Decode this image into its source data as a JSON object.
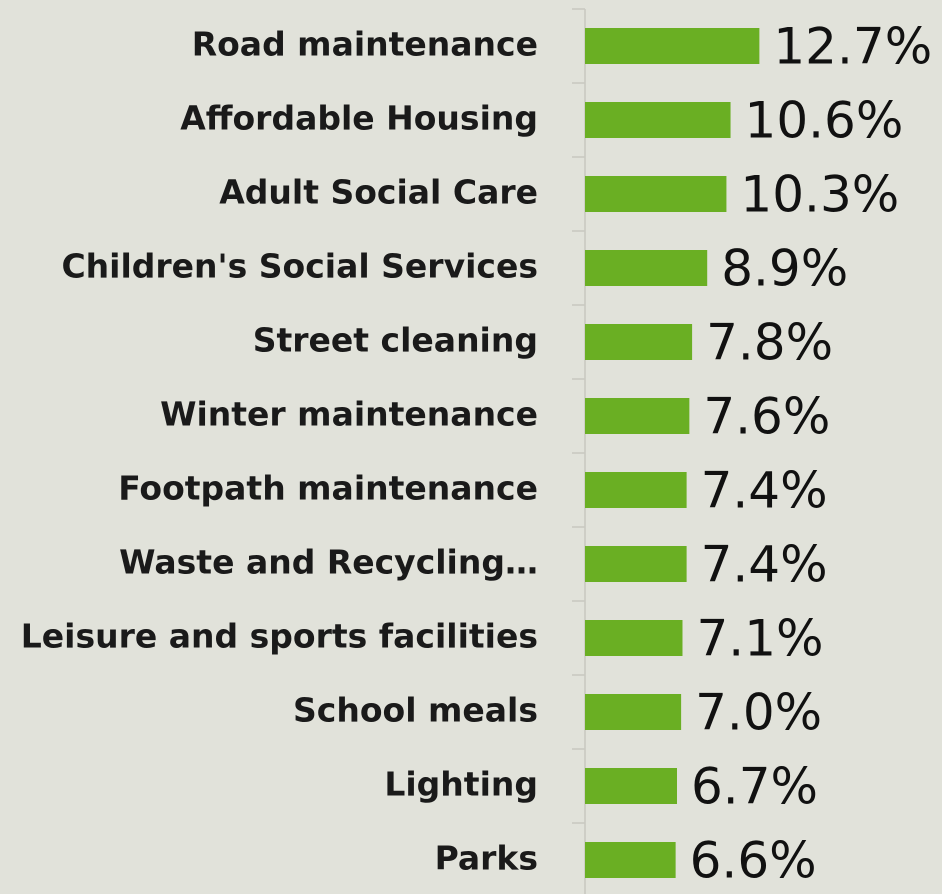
{
  "chart_data": {
    "type": "hbar",
    "categories": [
      "Road maintenance",
      "Affordable Housing",
      "Adult Social Care",
      "Children's Social Services",
      "Street cleaning",
      "Winter maintenance",
      "Footpath maintenance",
      "Waste and Recycling…",
      "Leisure and sports facilities",
      "School meals",
      "Lighting",
      "Parks"
    ],
    "values": [
      12.7,
      10.6,
      10.3,
      8.9,
      7.8,
      7.6,
      7.4,
      7.4,
      7.1,
      7.0,
      6.7,
      6.6
    ],
    "value_labels": [
      "12.7%",
      "10.6%",
      "10.3%",
      "8.9%",
      "7.8%",
      "7.6%",
      "7.4%",
      "7.4%",
      "7.1%",
      "7.0%",
      "6.7%",
      "6.6%"
    ],
    "color": "#6aaf23",
    "xlim": [
      0,
      26
    ]
  }
}
